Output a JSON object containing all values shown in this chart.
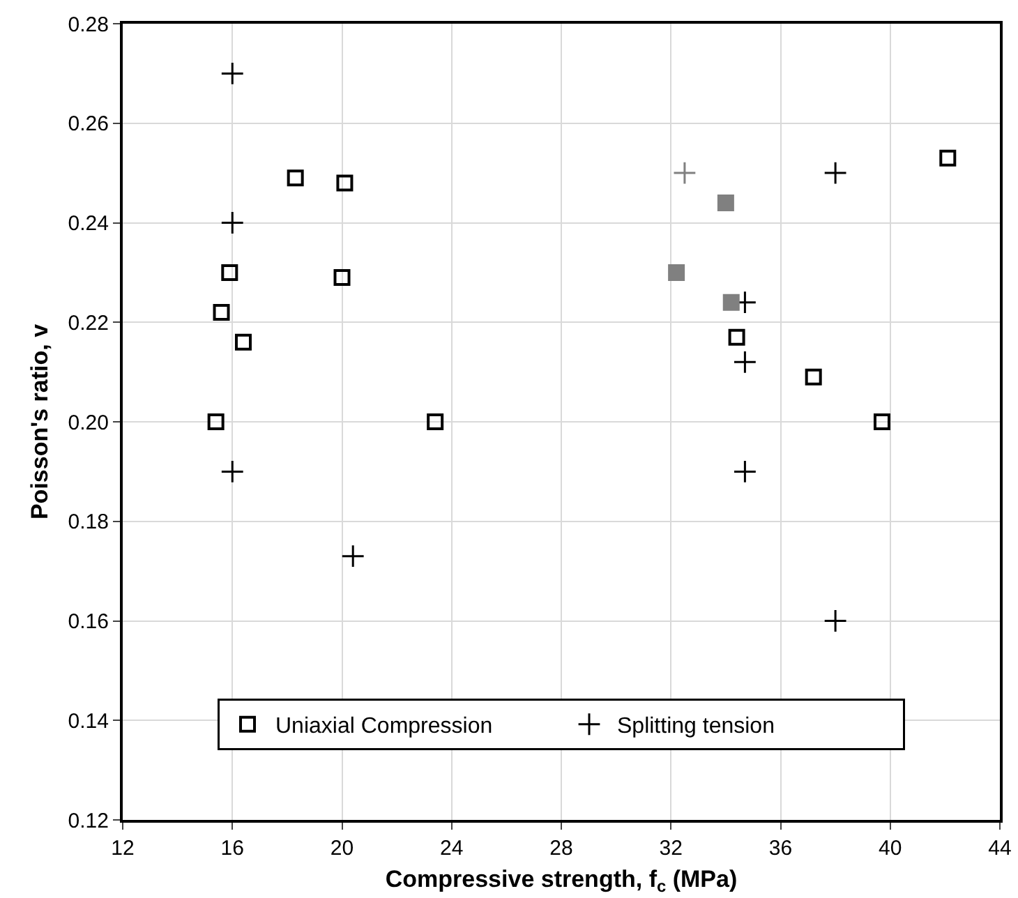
{
  "chart_data": {
    "type": "scatter",
    "xlabel": "Compressive strength, f$_{c}$ (MPa)",
    "ylabel": "Poisson's ratio, v",
    "xlim": [
      12,
      44
    ],
    "xticks": [
      12,
      16,
      20,
      24,
      28,
      32,
      36,
      40,
      44
    ],
    "ylim": [
      0.12,
      0.28
    ],
    "yticks": [
      0.12,
      0.14,
      0.16,
      0.18,
      {
        "value": 0.2,
        "label": "0.20"
      },
      0.22,
      0.24,
      0.26,
      0.28
    ],
    "grid": true,
    "legend": "bottom",
    "series": [
      {
        "name": "Uniaxial Compression",
        "color": "#000000",
        "marker": "square-open",
        "x": [
          18.3,
          20.1,
          15.9,
          15.6,
          16.4,
          15.4,
          20.0,
          23.4,
          42.1,
          34.4,
          37.2,
          39.7
        ],
        "values": [
          0.249,
          0.248,
          0.23,
          0.222,
          0.216,
          0.2,
          0.229,
          0.2,
          0.253,
          0.217,
          0.209,
          0.2
        ]
      },
      {
        "name": "Splitting tension",
        "color": "#000000",
        "marker": "cross",
        "x": [
          16.0,
          16.0,
          16.0,
          20.4,
          38.0,
          34.7,
          34.7,
          34.7,
          38.0
        ],
        "values": [
          0.27,
          0.24,
          0.19,
          0.173,
          0.25,
          0.224,
          0.212,
          0.19,
          0.16
        ]
      },
      {
        "color": "#808080",
        "marker": "square",
        "x": [
          34.0,
          32.2,
          34.2
        ],
        "values": [
          0.244,
          0.23,
          0.224
        ]
      },
      {
        "color": "#808080",
        "marker": "cross",
        "x": [
          32.5
        ],
        "values": [
          0.25
        ]
      }
    ]
  }
}
